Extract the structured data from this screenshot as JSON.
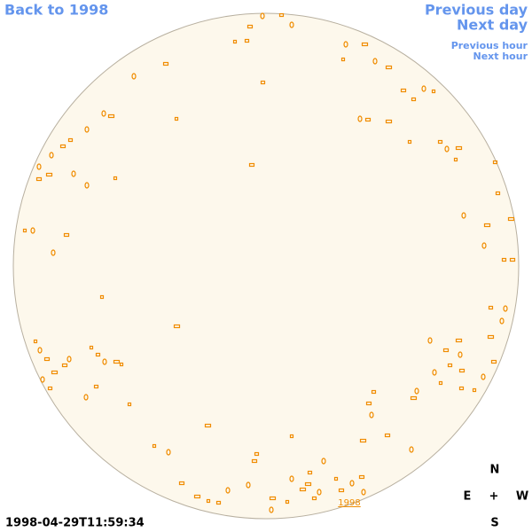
{
  "nav": {
    "back": "Back to 1998",
    "previous_day": "Previous day",
    "next_day": "Next day",
    "previous_hour": "Previous hour",
    "next_hour": "Next hour"
  },
  "timestamp": "1998-04-29T11:59:34",
  "disk_label": "1998",
  "compass": {
    "north": "N",
    "east": "E",
    "center": "+",
    "west": "W",
    "south": "S"
  }
}
